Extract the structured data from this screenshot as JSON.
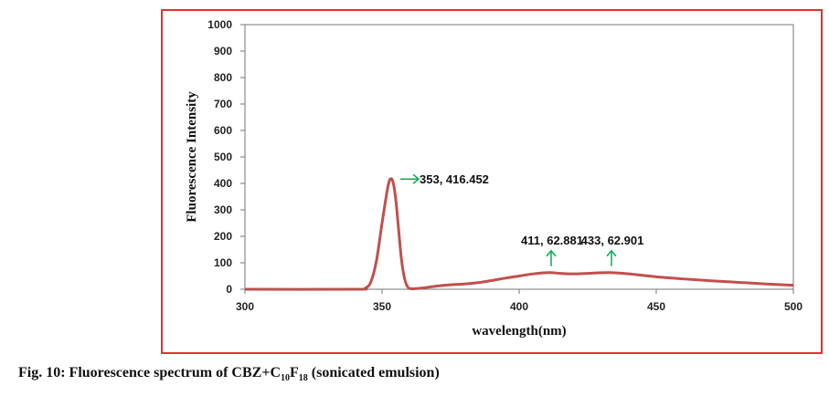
{
  "chart_data": {
    "type": "line",
    "xlabel": "wavelength(nm)",
    "ylabel": "Fluorescence Intensity",
    "xlim": [
      300,
      500
    ],
    "ylim": [
      0,
      1000
    ],
    "x_ticks": [
      300,
      350,
      400,
      450,
      500
    ],
    "y_ticks": [
      0,
      100,
      200,
      300,
      400,
      500,
      600,
      700,
      800,
      900,
      1000
    ],
    "grid": false,
    "legend": "none",
    "line_color": "#c0504d",
    "arrow_color": "#00b050",
    "series": [
      {
        "x": [
          300,
          340,
          344,
          346,
          348,
          350,
          352,
          353,
          354,
          355,
          356,
          357,
          358,
          359,
          360,
          362,
          365,
          370,
          375,
          380,
          385,
          390,
          395,
          400,
          405,
          411,
          415,
          420,
          425,
          433,
          440,
          450,
          460,
          470,
          480,
          490,
          500
        ],
        "y": [
          0,
          0,
          5,
          30,
          110,
          250,
          380,
          416.452,
          405,
          340,
          230,
          120,
          50,
          15,
          3,
          2,
          5,
          12,
          17,
          20,
          25,
          33,
          42,
          50,
          58,
          62.881,
          60,
          58,
          60,
          62.901,
          58,
          47,
          39,
          32,
          26,
          20,
          15
        ]
      }
    ],
    "annotations": [
      {
        "label": "353, 416.452",
        "x": 353,
        "y": 416.452,
        "arrow": "right"
      },
      {
        "label": "411, 62.881",
        "x": 411,
        "y": 62.881,
        "arrow": "up"
      },
      {
        "label": "433, 62.901",
        "x": 433,
        "y": 62.901,
        "arrow": "up"
      }
    ]
  },
  "caption": {
    "prefix": "Fig. 10: Fluorescence spectrum of CBZ+C",
    "sub1": "10",
    "mid": "F",
    "sub2": "18",
    "suffix": " (sonicated emulsion)"
  }
}
